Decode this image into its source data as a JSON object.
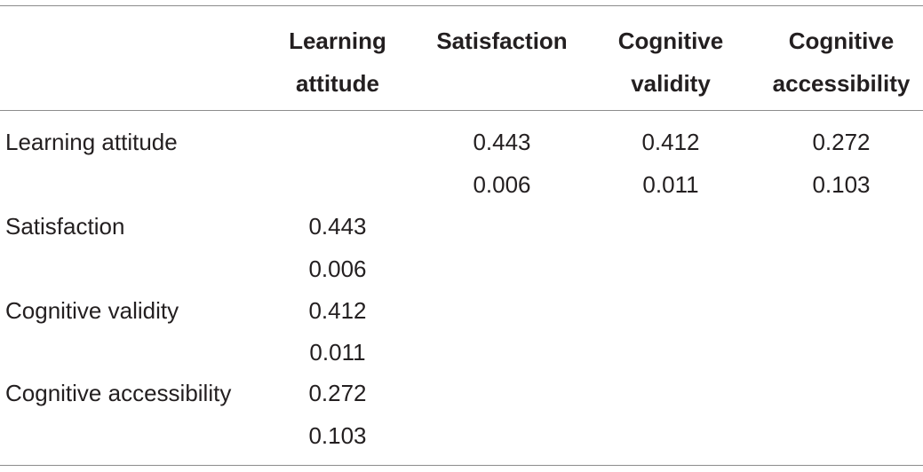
{
  "table": {
    "columns": [
      {
        "line1": "Learning",
        "line2": "attitude"
      },
      {
        "line1": "Satisfaction",
        "line2": ""
      },
      {
        "line1": "Cognitive",
        "line2": "validity"
      },
      {
        "line1": "Cognitive",
        "line2": "accessibility"
      }
    ],
    "rows": [
      {
        "label": "Learning attitude",
        "cells": [
          {
            "r": "",
            "p": ""
          },
          {
            "r": "0.443",
            "p": "0.006"
          },
          {
            "r": "0.412",
            "p": "0.011"
          },
          {
            "r": "0.272",
            "p": "0.103"
          }
        ]
      },
      {
        "label": "Satisfaction",
        "cells": [
          {
            "r": "0.443",
            "p": "0.006"
          },
          {
            "r": "",
            "p": ""
          },
          {
            "r": "",
            "p": ""
          },
          {
            "r": "",
            "p": ""
          }
        ]
      },
      {
        "label": "Cognitive validity",
        "cells": [
          {
            "r": "0.412",
            "p": "0.011"
          },
          {
            "r": "",
            "p": ""
          },
          {
            "r": "",
            "p": ""
          },
          {
            "r": "",
            "p": ""
          }
        ]
      },
      {
        "label": "Cognitive accessibility",
        "cells": [
          {
            "r": "0.272",
            "p": "0.103"
          },
          {
            "r": "",
            "p": ""
          },
          {
            "r": "",
            "p": ""
          },
          {
            "r": "",
            "p": ""
          }
        ]
      }
    ]
  }
}
